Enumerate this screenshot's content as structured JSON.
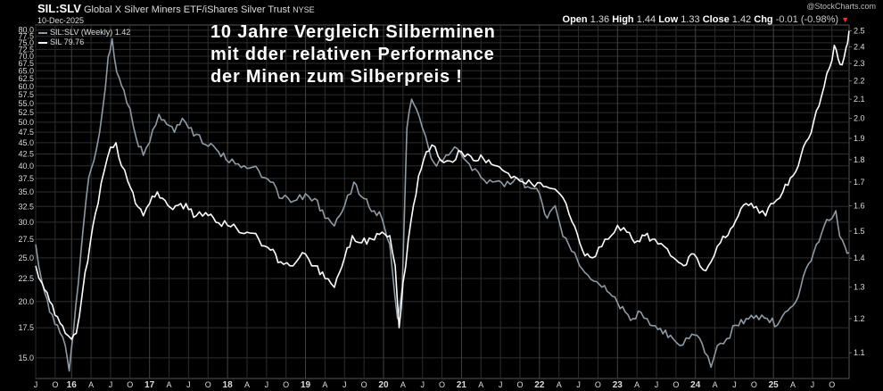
{
  "header": {
    "symbol": "SIL:SLV",
    "description": "Global X Silver Miners ETF/iShares Silver Trust",
    "exchange": "NYSE",
    "date": "10-Dec-2025",
    "open_label": "Open",
    "open": "1.36",
    "high_label": "High",
    "high": "1.44",
    "low_label": "Low",
    "low": "1.33",
    "close_label": "Close",
    "close": "1.42",
    "chg_label": "Chg",
    "chg": "-0.01 (-0.98%)",
    "watermark": "@StockCharts.com"
  },
  "annotation": "10 Jahre Vergleich Silberminen\nmit dder relativen Performance\nder Minen zum Silberpreis !",
  "legend": {
    "ratio": "SIL:SLV (Weekly) 1.42",
    "sil": "SIL 79.76"
  },
  "colors": {
    "ratio": "#8e9aa4",
    "sil": "#ffffff",
    "grid": "#2e2e2e",
    "text": "#dddddd",
    "background": "#000000"
  },
  "chart_data": {
    "type": "line",
    "title": "SIL:SLV Global X Silver Miners ETF/iShares Silver Trust NYSE",
    "y_left": {
      "series": "SIL",
      "scale": "log",
      "ylim": [
        13.5,
        81
      ],
      "ticks": [
        "15.0",
        "17.5",
        "20.0",
        "22.5",
        "25.0",
        "27.5",
        "30.0",
        "32.5",
        "35.0",
        "37.5",
        "40.0",
        "42.5",
        "45.0",
        "47.5",
        "50.0",
        "52.5",
        "55.0",
        "57.5",
        "60.0",
        "62.5",
        "65.0",
        "67.5",
        "70.0",
        "72.5",
        "75.0",
        "77.5",
        "80.0"
      ]
    },
    "y_right": {
      "series": "SIL:SLV (Weekly)",
      "scale": "log",
      "ylim": [
        1.03,
        2.52
      ],
      "ticks": [
        "1.1",
        "1.2",
        "1.3",
        "1.4",
        "1.5",
        "1.6",
        "1.7",
        "1.8",
        "1.9",
        "2.0",
        "2.1",
        "2.2",
        "2.3",
        "2.4",
        "2.5"
      ]
    },
    "x_range": [
      2015.54,
      2025.97
    ],
    "x_ticks": [
      {
        "label": "J",
        "x": 2015.54
      },
      {
        "label": "O",
        "x": 2015.79
      },
      {
        "label": "16",
        "x": 2016.0,
        "year": true
      },
      {
        "label": "A",
        "x": 2016.25
      },
      {
        "label": "J",
        "x": 2016.5
      },
      {
        "label": "O",
        "x": 2016.75
      },
      {
        "label": "17",
        "x": 2017.0,
        "year": true
      },
      {
        "label": "A",
        "x": 2017.25
      },
      {
        "label": "J",
        "x": 2017.5
      },
      {
        "label": "O",
        "x": 2017.75
      },
      {
        "label": "18",
        "x": 2018.0,
        "year": true
      },
      {
        "label": "A",
        "x": 2018.25
      },
      {
        "label": "J",
        "x": 2018.5
      },
      {
        "label": "O",
        "x": 2018.75
      },
      {
        "label": "19",
        "x": 2019.0,
        "year": true
      },
      {
        "label": "A",
        "x": 2019.25
      },
      {
        "label": "J",
        "x": 2019.5
      },
      {
        "label": "O",
        "x": 2019.75
      },
      {
        "label": "20",
        "x": 2020.0,
        "year": true
      },
      {
        "label": "A",
        "x": 2020.25
      },
      {
        "label": "J",
        "x": 2020.5
      },
      {
        "label": "O",
        "x": 2020.75
      },
      {
        "label": "21",
        "x": 2021.0,
        "year": true
      },
      {
        "label": "A",
        "x": 2021.25
      },
      {
        "label": "J",
        "x": 2021.5
      },
      {
        "label": "O",
        "x": 2021.75
      },
      {
        "label": "22",
        "x": 2022.0,
        "year": true
      },
      {
        "label": "A",
        "x": 2022.25
      },
      {
        "label": "J",
        "x": 2022.5
      },
      {
        "label": "O",
        "x": 2022.75
      },
      {
        "label": "23",
        "x": 2023.0,
        "year": true
      },
      {
        "label": "A",
        "x": 2023.25
      },
      {
        "label": "J",
        "x": 2023.5
      },
      {
        "label": "O",
        "x": 2023.75
      },
      {
        "label": "24",
        "x": 2024.0,
        "year": true
      },
      {
        "label": "A",
        "x": 2024.25
      },
      {
        "label": "J",
        "x": 2024.5
      },
      {
        "label": "O",
        "x": 2024.75
      },
      {
        "label": "25",
        "x": 2025.0,
        "year": true
      },
      {
        "label": "A",
        "x": 2025.25
      },
      {
        "label": "J",
        "x": 2025.5
      },
      {
        "label": "O",
        "x": 2025.75
      }
    ],
    "series": [
      {
        "name": "SIL:SLV (Weekly)",
        "axis": "right",
        "points": [
          [
            2015.54,
            1.45
          ],
          [
            2015.62,
            1.32
          ],
          [
            2015.72,
            1.22
          ],
          [
            2015.82,
            1.18
          ],
          [
            2015.92,
            1.12
          ],
          [
            2015.97,
            1.05
          ],
          [
            2016.02,
            1.15
          ],
          [
            2016.12,
            1.42
          ],
          [
            2016.22,
            1.72
          ],
          [
            2016.32,
            1.85
          ],
          [
            2016.4,
            2.05
          ],
          [
            2016.47,
            2.34
          ],
          [
            2016.52,
            2.45
          ],
          [
            2016.58,
            2.25
          ],
          [
            2016.67,
            2.15
          ],
          [
            2016.75,
            2.05
          ],
          [
            2016.83,
            1.9
          ],
          [
            2016.92,
            1.82
          ],
          [
            2017.0,
            1.88
          ],
          [
            2017.12,
            2.02
          ],
          [
            2017.22,
            1.97
          ],
          [
            2017.32,
            1.93
          ],
          [
            2017.42,
            2.0
          ],
          [
            2017.5,
            1.95
          ],
          [
            2017.6,
            1.92
          ],
          [
            2017.72,
            1.87
          ],
          [
            2017.85,
            1.85
          ],
          [
            2017.98,
            1.8
          ],
          [
            2018.1,
            1.78
          ],
          [
            2018.25,
            1.76
          ],
          [
            2018.4,
            1.75
          ],
          [
            2018.55,
            1.7
          ],
          [
            2018.7,
            1.63
          ],
          [
            2018.85,
            1.62
          ],
          [
            2019.0,
            1.65
          ],
          [
            2019.12,
            1.63
          ],
          [
            2019.25,
            1.55
          ],
          [
            2019.37,
            1.52
          ],
          [
            2019.5,
            1.6
          ],
          [
            2019.62,
            1.7
          ],
          [
            2019.75,
            1.63
          ],
          [
            2019.88,
            1.58
          ],
          [
            2019.98,
            1.55
          ],
          [
            2020.08,
            1.45
          ],
          [
            2020.18,
            1.2
          ],
          [
            2020.24,
            1.3
          ],
          [
            2020.3,
            1.95
          ],
          [
            2020.36,
            2.1
          ],
          [
            2020.42,
            2.05
          ],
          [
            2020.5,
            1.95
          ],
          [
            2020.58,
            1.85
          ],
          [
            2020.68,
            1.77
          ],
          [
            2020.8,
            1.82
          ],
          [
            2020.95,
            1.85
          ],
          [
            2021.1,
            1.78
          ],
          [
            2021.25,
            1.72
          ],
          [
            2021.4,
            1.7
          ],
          [
            2021.55,
            1.68
          ],
          [
            2021.7,
            1.72
          ],
          [
            2021.85,
            1.68
          ],
          [
            2022.0,
            1.65
          ],
          [
            2022.1,
            1.55
          ],
          [
            2022.2,
            1.6
          ],
          [
            2022.3,
            1.48
          ],
          [
            2022.45,
            1.42
          ],
          [
            2022.58,
            1.35
          ],
          [
            2022.7,
            1.32
          ],
          [
            2022.8,
            1.3
          ],
          [
            2022.9,
            1.28
          ],
          [
            2023.0,
            1.25
          ],
          [
            2023.1,
            1.22
          ],
          [
            2023.2,
            1.2
          ],
          [
            2023.3,
            1.22
          ],
          [
            2023.42,
            1.18
          ],
          [
            2023.55,
            1.17
          ],
          [
            2023.68,
            1.15
          ],
          [
            2023.8,
            1.12
          ],
          [
            2023.92,
            1.14
          ],
          [
            2024.02,
            1.15
          ],
          [
            2024.12,
            1.1
          ],
          [
            2024.2,
            1.06
          ],
          [
            2024.28,
            1.12
          ],
          [
            2024.4,
            1.14
          ],
          [
            2024.52,
            1.18
          ],
          [
            2024.65,
            1.2
          ],
          [
            2024.78,
            1.21
          ],
          [
            2024.92,
            1.2
          ],
          [
            2025.05,
            1.18
          ],
          [
            2025.15,
            1.22
          ],
          [
            2025.25,
            1.24
          ],
          [
            2025.35,
            1.3
          ],
          [
            2025.45,
            1.38
          ],
          [
            2025.55,
            1.45
          ],
          [
            2025.65,
            1.52
          ],
          [
            2025.75,
            1.55
          ],
          [
            2025.8,
            1.58
          ],
          [
            2025.85,
            1.48
          ],
          [
            2025.92,
            1.44
          ],
          [
            2025.97,
            1.42
          ]
        ]
      },
      {
        "name": "SIL",
        "axis": "left",
        "points": [
          [
            2015.54,
            24.0
          ],
          [
            2015.62,
            22.0
          ],
          [
            2015.72,
            20.0
          ],
          [
            2015.82,
            18.5
          ],
          [
            2015.92,
            17.0
          ],
          [
            2016.0,
            16.5
          ],
          [
            2016.06,
            17.0
          ],
          [
            2016.14,
            21.0
          ],
          [
            2016.24,
            27.0
          ],
          [
            2016.34,
            33.0
          ],
          [
            2016.42,
            39.0
          ],
          [
            2016.5,
            44.0
          ],
          [
            2016.57,
            45.0
          ],
          [
            2016.64,
            40.0
          ],
          [
            2016.72,
            37.0
          ],
          [
            2016.82,
            33.0
          ],
          [
            2016.92,
            31.0
          ],
          [
            2017.0,
            33.0
          ],
          [
            2017.1,
            35.0
          ],
          [
            2017.2,
            33.5
          ],
          [
            2017.3,
            32.0
          ],
          [
            2017.4,
            33.0
          ],
          [
            2017.5,
            32.0
          ],
          [
            2017.6,
            31.0
          ],
          [
            2017.72,
            31.5
          ],
          [
            2017.85,
            30.0
          ],
          [
            2018.0,
            29.5
          ],
          [
            2018.12,
            29.0
          ],
          [
            2018.25,
            28.5
          ],
          [
            2018.4,
            27.5
          ],
          [
            2018.55,
            26.0
          ],
          [
            2018.68,
            24.5
          ],
          [
            2018.8,
            24.0
          ],
          [
            2018.92,
            25.0
          ],
          [
            2019.0,
            25.5
          ],
          [
            2019.12,
            24.0
          ],
          [
            2019.25,
            22.5
          ],
          [
            2019.37,
            21.5
          ],
          [
            2019.5,
            25.0
          ],
          [
            2019.6,
            28.0
          ],
          [
            2019.72,
            27.0
          ],
          [
            2019.85,
            27.5
          ],
          [
            2019.98,
            28.5
          ],
          [
            2020.08,
            28.0
          ],
          [
            2020.15,
            24.0
          ],
          [
            2020.2,
            17.5
          ],
          [
            2020.25,
            22.0
          ],
          [
            2020.35,
            30.0
          ],
          [
            2020.45,
            38.0
          ],
          [
            2020.55,
            43.0
          ],
          [
            2020.62,
            44.5
          ],
          [
            2020.7,
            42.0
          ],
          [
            2020.85,
            41.0
          ],
          [
            2021.0,
            43.0
          ],
          [
            2021.12,
            42.0
          ],
          [
            2021.28,
            41.5
          ],
          [
            2021.45,
            40.0
          ],
          [
            2021.6,
            38.5
          ],
          [
            2021.75,
            37.0
          ],
          [
            2021.9,
            36.5
          ],
          [
            2022.05,
            36.0
          ],
          [
            2022.2,
            35.5
          ],
          [
            2022.3,
            34.0
          ],
          [
            2022.42,
            30.0
          ],
          [
            2022.55,
            26.0
          ],
          [
            2022.68,
            25.0
          ],
          [
            2022.8,
            26.5
          ],
          [
            2022.92,
            28.0
          ],
          [
            2023.0,
            29.5
          ],
          [
            2023.12,
            28.5
          ],
          [
            2023.22,
            27.0
          ],
          [
            2023.35,
            28.0
          ],
          [
            2023.48,
            27.5
          ],
          [
            2023.6,
            26.5
          ],
          [
            2023.72,
            25.0
          ],
          [
            2023.85,
            24.0
          ],
          [
            2023.98,
            25.5
          ],
          [
            2024.1,
            23.5
          ],
          [
            2024.2,
            24.5
          ],
          [
            2024.32,
            27.0
          ],
          [
            2024.45,
            29.0
          ],
          [
            2024.55,
            31.0
          ],
          [
            2024.65,
            33.0
          ],
          [
            2024.78,
            32.5
          ],
          [
            2024.9,
            31.0
          ],
          [
            2025.0,
            33.0
          ],
          [
            2025.12,
            35.0
          ],
          [
            2025.25,
            38.0
          ],
          [
            2025.35,
            42.0
          ],
          [
            2025.45,
            46.0
          ],
          [
            2025.55,
            53.0
          ],
          [
            2025.65,
            60.0
          ],
          [
            2025.72,
            66.0
          ],
          [
            2025.78,
            74.0
          ],
          [
            2025.83,
            69.0
          ],
          [
            2025.88,
            67.0
          ],
          [
            2025.93,
            73.0
          ],
          [
            2025.97,
            79.76
          ]
        ]
      }
    ]
  }
}
